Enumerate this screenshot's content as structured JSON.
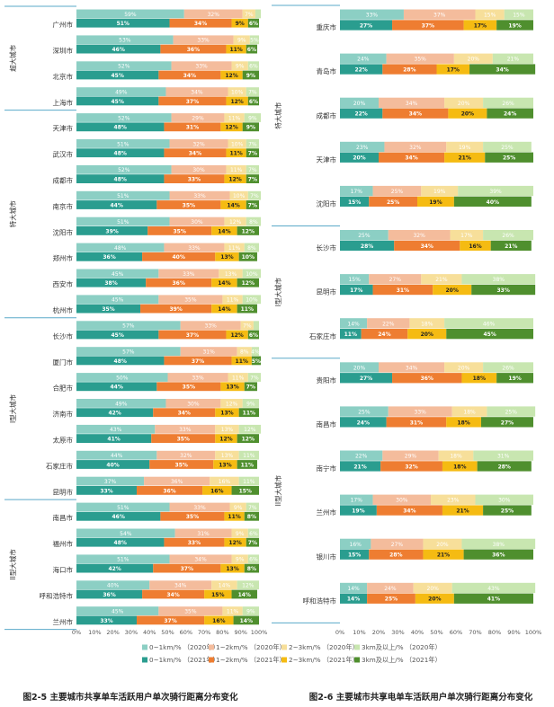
{
  "colors": {
    "s2020": [
      "#8ccfc4",
      "#f4bc9c",
      "#f7df9a",
      "#c8e6b0"
    ],
    "s2021": [
      "#2a9d8f",
      "#ee7d31",
      "#f5bb12",
      "#4f8f2e"
    ],
    "group_line": "#5aa9c9",
    "group_text": "#333333",
    "city_text": "#333333",
    "axis_text": "#555555",
    "legend_text": "#555555",
    "caption_text": "#222222"
  },
  "legend": {
    "row2020": [
      "0~1km/% （2020年）",
      "1~2km/% （2020年）",
      "2~3km/% （2020年）",
      "3km及以上/% （2020年）"
    ],
    "row2021": [
      "0~1km/% （2021年）",
      "1~2km/% （2021年）",
      "2~3km/% （2021年）",
      "3km及以上/% （2021年）"
    ]
  },
  "chart_data": [
    {
      "type": "bar",
      "subtype": "stacked-horizontal-100",
      "title": "图2-5 主要城市共享单车活跃用户单次骑行距离分布变化",
      "xlabel": "",
      "ylabel": "",
      "xlim": [
        0,
        100
      ],
      "xticks": [
        "0%",
        "10%",
        "20%",
        "30%",
        "40%",
        "50%",
        "60%",
        "70%",
        "80%",
        "90%",
        "100%"
      ],
      "series_names": [
        "0~1km",
        "1~2km",
        "2~3km",
        "3km及以上"
      ],
      "groups": [
        {
          "name": "超大城市",
          "cities": [
            {
              "name": "广州市",
              "y2020": [
                59,
                32,
                7,
                3
              ],
              "y2021": [
                51,
                34,
                9,
                6
              ]
            },
            {
              "name": "深圳市",
              "y2020": [
                53,
                33,
                9,
                5
              ],
              "y2021": [
                46,
                36,
                11,
                6
              ]
            },
            {
              "name": "北京市",
              "y2020": [
                52,
                33,
                9,
                6
              ],
              "y2021": [
                45,
                34,
                12,
                9
              ]
            },
            {
              "name": "上海市",
              "y2020": [
                49,
                34,
                10,
                7
              ],
              "y2021": [
                45,
                37,
                12,
                6
              ]
            }
          ]
        },
        {
          "name": "特大城市",
          "cities": [
            {
              "name": "天津市",
              "y2020": [
                52,
                29,
                11,
                9
              ],
              "y2021": [
                48,
                31,
                12,
                9
              ]
            },
            {
              "name": "武汉市",
              "y2020": [
                51,
                32,
                10,
                7
              ],
              "y2021": [
                48,
                34,
                11,
                7
              ]
            },
            {
              "name": "成都市",
              "y2020": [
                52,
                30,
                11,
                7
              ],
              "y2021": [
                48,
                33,
                12,
                7
              ]
            },
            {
              "name": "南京市",
              "y2020": [
                51,
                33,
                10,
                7
              ],
              "y2021": [
                44,
                35,
                14,
                7
              ]
            },
            {
              "name": "沈阳市",
              "y2020": [
                51,
                30,
                12,
                8
              ],
              "y2021": [
                39,
                35,
                14,
                12
              ]
            },
            {
              "name": "郑州市",
              "y2020": [
                48,
                33,
                11,
                8
              ],
              "y2021": [
                36,
                40,
                13,
                10
              ]
            },
            {
              "name": "西安市",
              "y2020": [
                45,
                33,
                13,
                10
              ],
              "y2021": [
                38,
                36,
                14,
                12
              ]
            },
            {
              "name": "杭州市",
              "y2020": [
                45,
                35,
                11,
                10
              ],
              "y2021": [
                35,
                39,
                14,
                11
              ]
            }
          ]
        },
        {
          "name": "I型大城市",
          "cities": [
            {
              "name": "长沙市",
              "y2020": [
                57,
                33,
                7,
                3
              ],
              "y2021": [
                45,
                37,
                12,
                6
              ]
            },
            {
              "name": "厦门市",
              "y2020": [
                57,
                31,
                8,
                4
              ],
              "y2021": [
                48,
                37,
                11,
                5
              ]
            },
            {
              "name": "合肥市",
              "y2020": [
                50,
                33,
                11,
                7
              ],
              "y2021": [
                44,
                35,
                13,
                7
              ]
            },
            {
              "name": "济南市",
              "y2020": [
                49,
                30,
                12,
                9
              ],
              "y2021": [
                42,
                34,
                13,
                11
              ]
            },
            {
              "name": "太原市",
              "y2020": [
                43,
                33,
                13,
                12
              ],
              "y2021": [
                41,
                35,
                12,
                12
              ]
            },
            {
              "name": "石家庄市",
              "y2020": [
                44,
                32,
                13,
                11
              ],
              "y2021": [
                40,
                35,
                13,
                11
              ]
            },
            {
              "name": "昆明市",
              "y2020": [
                37,
                36,
                16,
                11
              ],
              "y2021": [
                33,
                36,
                16,
                15
              ]
            }
          ]
        },
        {
          "name": "II型大城市",
          "cities": [
            {
              "name": "南昌市",
              "y2020": [
                51,
                33,
                9,
                7
              ],
              "y2021": [
                46,
                35,
                11,
                8
              ]
            },
            {
              "name": "福州市",
              "y2020": [
                54,
                31,
                9,
                6
              ],
              "y2021": [
                48,
                33,
                12,
                7
              ]
            },
            {
              "name": "海口市",
              "y2020": [
                51,
                34,
                9,
                6
              ],
              "y2021": [
                42,
                37,
                13,
                8
              ]
            },
            {
              "name": "呼和浩特市",
              "y2020": [
                40,
                34,
                14,
                12
              ],
              "y2021": [
                36,
                34,
                15,
                14
              ]
            },
            {
              "name": "兰州市",
              "y2020": [
                45,
                35,
                11,
                9
              ],
              "y2021": [
                33,
                37,
                16,
                14
              ]
            }
          ]
        }
      ]
    },
    {
      "type": "bar",
      "subtype": "stacked-horizontal-100",
      "title": "图2-6 主要城市共享电单车活跃用户单次骑行距离分布变化",
      "xlabel": "",
      "ylabel": "",
      "xlim": [
        0,
        100
      ],
      "xticks": [
        "0%",
        "10%",
        "20%",
        "30%",
        "40%",
        "50%",
        "60%",
        "70%",
        "80%",
        "90%",
        "100%"
      ],
      "series_names": [
        "0~1km",
        "1~2km",
        "2~3km",
        "3km及以上"
      ],
      "groups": [
        {
          "name": "特大城市",
          "cities": [
            {
              "name": "重庆市",
              "y2020": [
                33,
                37,
                15,
                15
              ],
              "y2021": [
                27,
                37,
                17,
                19
              ]
            },
            {
              "name": "青岛市",
              "y2020": [
                24,
                35,
                20,
                21
              ],
              "y2021": [
                22,
                28,
                17,
                34
              ]
            },
            {
              "name": "成都市",
              "y2020": [
                20,
                34,
                20,
                26
              ],
              "y2021": [
                22,
                34,
                20,
                24
              ]
            },
            {
              "name": "天津市",
              "y2020": [
                23,
                32,
                19,
                25
              ],
              "y2021": [
                20,
                34,
                21,
                25
              ]
            },
            {
              "name": "沈阳市",
              "y2020": [
                17,
                25,
                19,
                39
              ],
              "y2021": [
                15,
                25,
                19,
                40
              ]
            }
          ]
        },
        {
          "name": "I型大城市",
          "cities": [
            {
              "name": "长沙市",
              "y2020": [
                25,
                32,
                17,
                26
              ],
              "y2021": [
                28,
                34,
                16,
                21
              ]
            },
            {
              "name": "昆明市",
              "y2020": [
                15,
                27,
                21,
                38
              ],
              "y2021": [
                17,
                31,
                20,
                33
              ]
            },
            {
              "name": "石家庄市",
              "y2020": [
                14,
                22,
                18,
                46
              ],
              "y2021": [
                11,
                24,
                20,
                45
              ]
            }
          ]
        },
        {
          "name": "II型大城市",
          "cities": [
            {
              "name": "贵阳市",
              "y2020": [
                20,
                34,
                20,
                26
              ],
              "y2021": [
                27,
                36,
                18,
                19
              ]
            },
            {
              "name": "南昌市",
              "y2020": [
                25,
                33,
                18,
                25
              ],
              "y2021": [
                24,
                31,
                18,
                27
              ]
            },
            {
              "name": "南宁市",
              "y2020": [
                22,
                29,
                18,
                31
              ],
              "y2021": [
                21,
                32,
                18,
                28
              ]
            },
            {
              "name": "兰州市",
              "y2020": [
                17,
                30,
                23,
                30
              ],
              "y2021": [
                19,
                34,
                21,
                25
              ]
            },
            {
              "name": "银川市",
              "y2020": [
                16,
                27,
                20,
                38
              ],
              "y2021": [
                15,
                28,
                21,
                36
              ]
            },
            {
              "name": "呼和浩特市",
              "y2020": [
                14,
                24,
                20,
                43
              ],
              "y2021": [
                14,
                25,
                20,
                41
              ]
            }
          ]
        }
      ]
    }
  ]
}
